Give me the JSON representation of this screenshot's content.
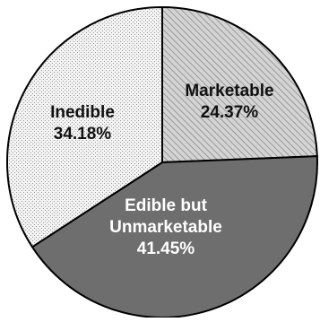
{
  "chart_data": {
    "type": "pie",
    "title": "",
    "slices": [
      {
        "label_lines": [
          "Marketable"
        ],
        "pct_label": "24.37%",
        "value": 24.37,
        "pattern": "diagonal-hatch",
        "fill": "#c8c8c8",
        "text_color": "#111111"
      },
      {
        "label_lines": [
          "Edible but",
          "Unmarketable"
        ],
        "pct_label": "41.45%",
        "value": 41.45,
        "pattern": "solid",
        "fill": "#6e6e6e",
        "text_color": "#ffffff"
      },
      {
        "label_lines": [
          "Inedible"
        ],
        "pct_label": "34.18%",
        "value": 34.18,
        "pattern": "stipple",
        "fill": "#f0f0f0",
        "text_color": "#111111"
      }
    ],
    "start_angle_deg": 0,
    "direction": "clockwise",
    "legend": "none"
  }
}
